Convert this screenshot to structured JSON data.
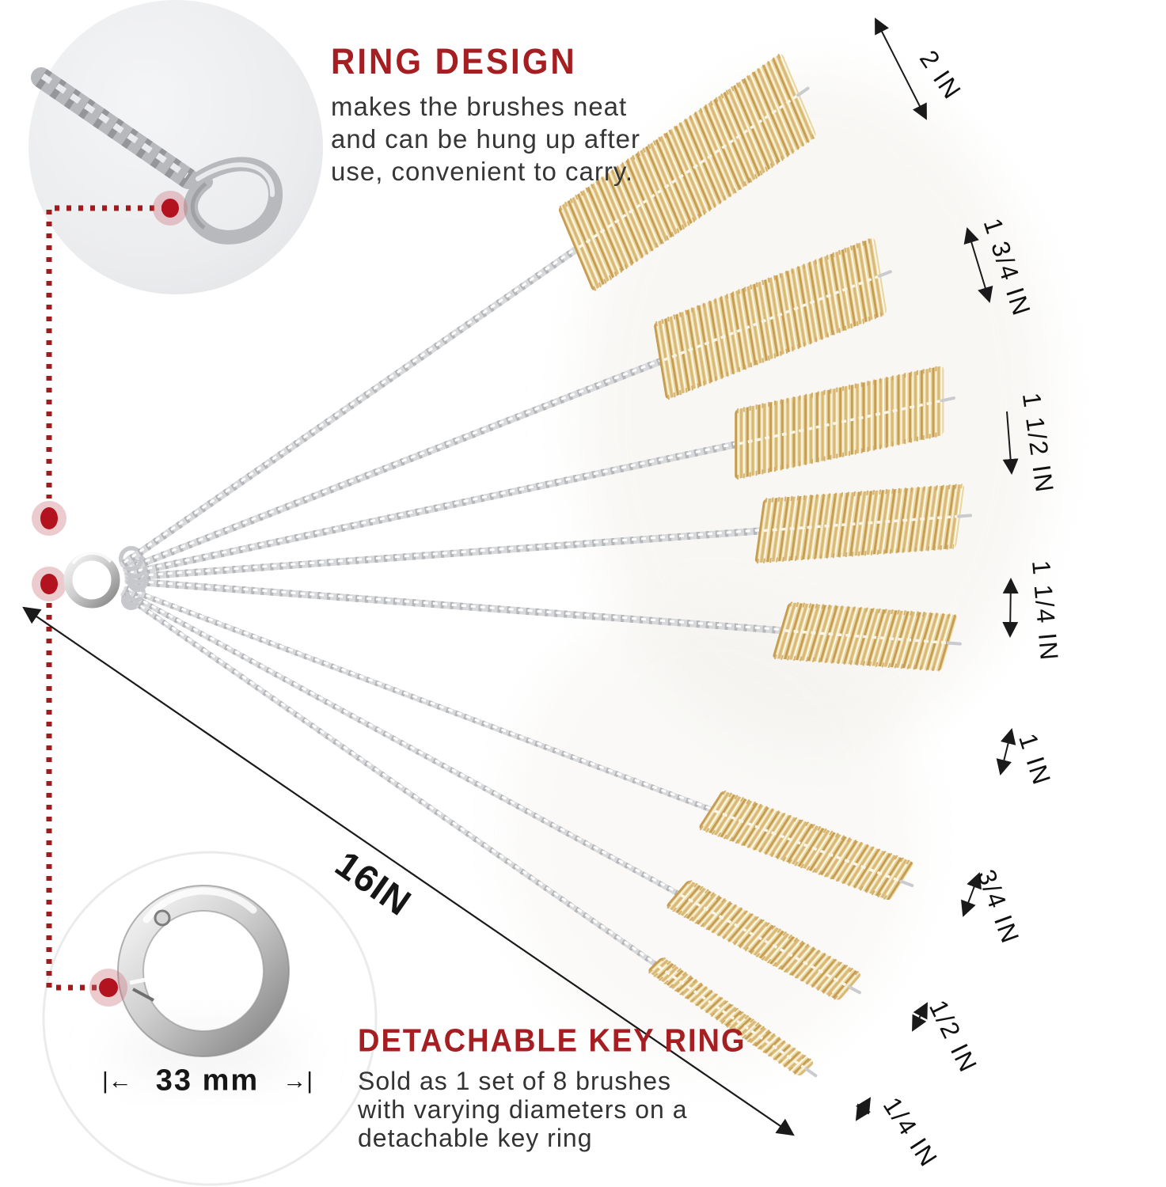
{
  "ring_design": {
    "title": "RING DESIGN",
    "lines": [
      "makes the brushes neat",
      "and can be hung up after",
      "use, convenient to carry."
    ]
  },
  "key_ring": {
    "title": "DETACHABLE KEY RING",
    "lines": [
      "Sold as 1 set of 8 brushes",
      "with varying diameters on a",
      "detachable key ring"
    ],
    "diameter_label": "33 mm",
    "left_bracket": "|←",
    "right_bracket": "→|"
  },
  "overall_length_label": "16IN",
  "brush_sizes": [
    "2 IN",
    "1 3/4 IN",
    "1 1/2 IN",
    "1 1/4 IN",
    "1 IN",
    "3/4 IN",
    "1/2 IN",
    "1/4 IN"
  ],
  "colors": {
    "accent_red": "#A41E22",
    "marker_red": "#B2131F",
    "brass": "#E7D3A0",
    "wire_silver": "#D6D7D9"
  }
}
